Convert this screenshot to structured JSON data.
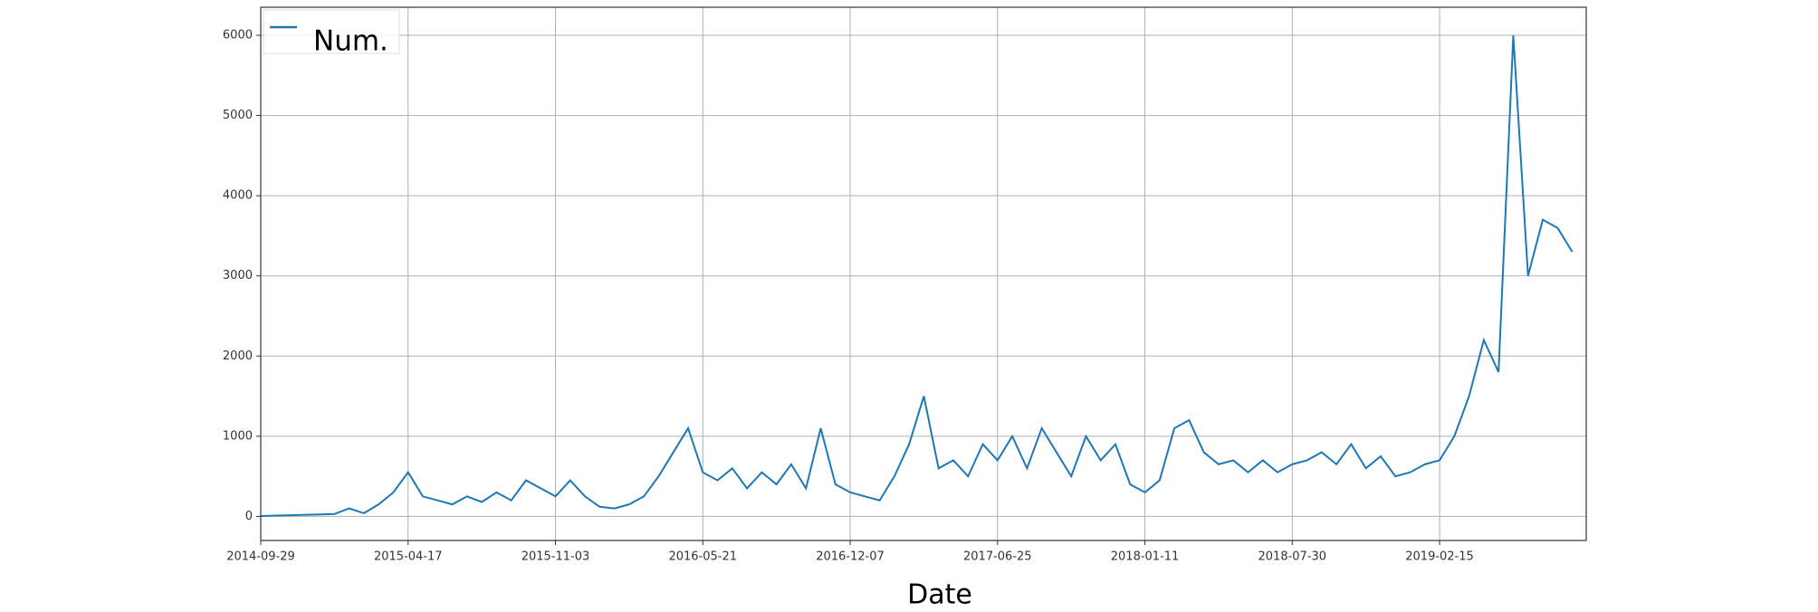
{
  "chart_data": {
    "type": "line",
    "xlabel": "Date",
    "x": [
      "2014-09-29",
      "2014-10-19",
      "2014-11-08",
      "2014-11-28",
      "2014-12-18",
      "2015-01-07",
      "2015-01-27",
      "2015-02-16",
      "2015-03-08",
      "2015-03-28",
      "2015-04-17",
      "2015-05-07",
      "2015-05-27",
      "2015-06-16",
      "2015-07-06",
      "2015-07-26",
      "2015-08-15",
      "2015-09-04",
      "2015-09-24",
      "2015-10-14",
      "2015-11-03",
      "2015-11-23",
      "2015-12-13",
      "2016-01-02",
      "2016-01-22",
      "2016-02-11",
      "2016-03-02",
      "2016-03-22",
      "2016-04-11",
      "2016-05-01",
      "2016-05-21",
      "2016-06-10",
      "2016-06-30",
      "2016-07-20",
      "2016-08-09",
      "2016-08-29",
      "2016-09-18",
      "2016-10-08",
      "2016-10-28",
      "2016-11-17",
      "2016-12-07",
      "2016-12-27",
      "2017-01-16",
      "2017-02-05",
      "2017-02-25",
      "2017-03-17",
      "2017-04-06",
      "2017-04-26",
      "2017-05-16",
      "2017-06-05",
      "2017-06-25",
      "2017-07-15",
      "2017-08-04",
      "2017-08-24",
      "2017-09-13",
      "2017-10-03",
      "2017-10-23",
      "2017-11-12",
      "2017-12-02",
      "2017-12-22",
      "2018-01-11",
      "2018-01-31",
      "2018-02-20",
      "2018-03-12",
      "2018-04-01",
      "2018-04-21",
      "2018-05-11",
      "2018-05-31",
      "2018-06-20",
      "2018-07-10",
      "2018-07-30",
      "2018-08-19",
      "2018-09-08",
      "2018-09-28",
      "2018-10-18",
      "2018-11-07",
      "2018-11-27",
      "2018-12-17",
      "2019-01-06",
      "2019-01-26",
      "2019-02-15",
      "2019-03-07",
      "2019-03-27",
      "2019-04-16",
      "2019-05-06",
      "2019-05-26",
      "2019-06-15",
      "2019-07-05",
      "2019-07-25",
      "2019-08-14"
    ],
    "series": [
      {
        "name": "Num.",
        "color": "#1f77b4",
        "values": [
          5,
          10,
          15,
          20,
          25,
          30,
          100,
          40,
          150,
          300,
          550,
          250,
          200,
          150,
          250,
          180,
          300,
          200,
          450,
          350,
          250,
          450,
          250,
          120,
          100,
          150,
          250,
          500,
          800,
          1100,
          550,
          450,
          600,
          350,
          550,
          400,
          650,
          350,
          1100,
          400,
          300,
          250,
          200,
          500,
          900,
          1500,
          600,
          700,
          500,
          900,
          700,
          1000,
          600,
          1100,
          800,
          500,
          1000,
          700,
          900,
          400,
          300,
          450,
          1100,
          1200,
          800,
          650,
          700,
          550,
          700,
          550,
          650,
          700,
          800,
          650,
          900,
          600,
          750,
          500,
          550,
          650,
          700,
          1000,
          1500,
          2200,
          1800,
          6000,
          3000,
          3700,
          3600,
          3300
        ]
      }
    ],
    "xlim": [
      "2014-09-29",
      "2019-09-02"
    ],
    "xticks": [
      "2014-09-29",
      "2015-04-17",
      "2015-11-03",
      "2016-05-21",
      "2016-12-07",
      "2017-06-25",
      "2018-01-11",
      "2018-07-30",
      "2019-02-15"
    ],
    "ylim": [
      -300,
      6350
    ],
    "yticks": [
      0,
      1000,
      2000,
      3000,
      4000,
      5000,
      6000
    ],
    "grid": true,
    "legend": "upper left"
  }
}
